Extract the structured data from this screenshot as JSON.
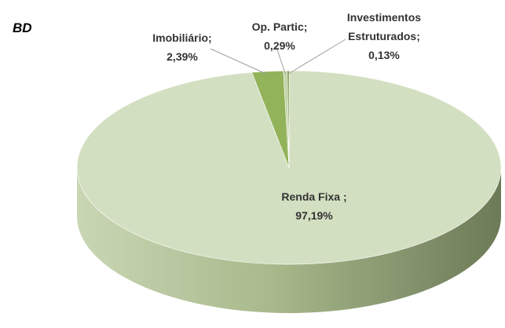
{
  "chart_data": {
    "type": "pie3d",
    "title": "BD",
    "categories": [
      "Renda Fixa ;",
      "Imobiliário;",
      "Op. Partic;",
      "Investimentos Estruturados;"
    ],
    "values": [
      97.19,
      2.39,
      0.29,
      0.13
    ],
    "value_labels": [
      "97,19%",
      "2,39%",
      "0,29%",
      "0,13%"
    ],
    "colors": [
      "#d3dfc1",
      "#93b35b",
      "#c3d4a5",
      "#6f8c3a"
    ],
    "side_color": "#9fb083"
  }
}
